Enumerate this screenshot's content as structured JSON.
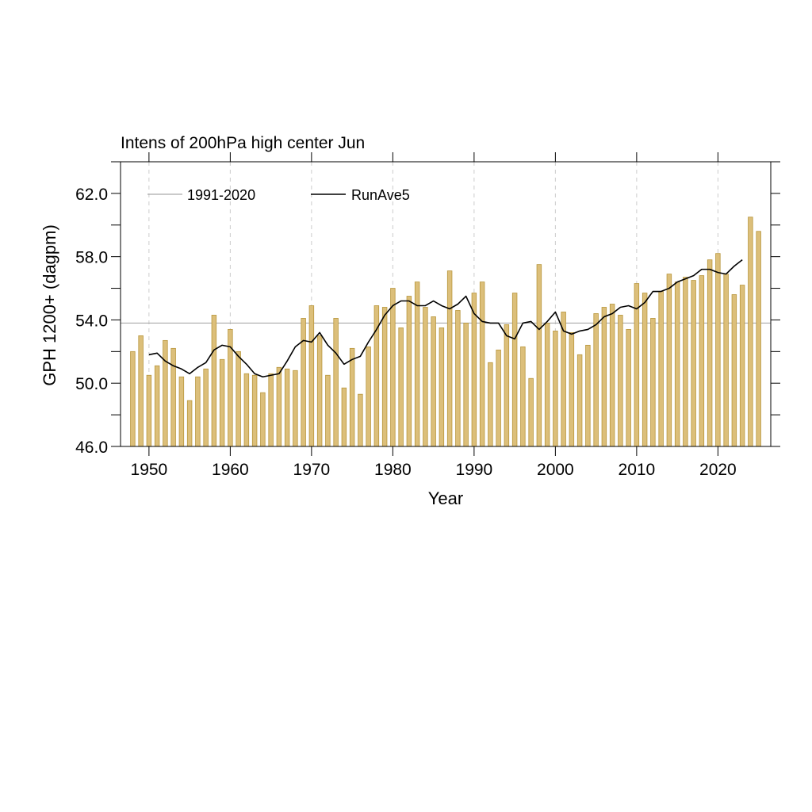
{
  "chart_data": {
    "type": "bar",
    "title": "Intens of 200hPa high center Jun",
    "xlabel": "Year",
    "ylabel": "GPH 1200+ (dagpm)",
    "xlim": [
      1946.5,
      2026.5
    ],
    "ylim": [
      46.0,
      64.0
    ],
    "x_ticks": [
      1950,
      1960,
      1970,
      1980,
      1990,
      2000,
      2010,
      2020
    ],
    "x_tick_labels": [
      "1950",
      "1960",
      "1970",
      "1980",
      "1990",
      "2000",
      "2010",
      "2020"
    ],
    "y_ticks": [
      46.0,
      50.0,
      54.0,
      58.0,
      62.0
    ],
    "y_tick_labels": [
      "46.0",
      "50.0",
      "54.0",
      "58.0",
      "62.0"
    ],
    "grid": "vertical dashed at major x ticks",
    "legend_position": "top-left",
    "bar_color": "#dcbf7a",
    "bar_edge_color": "#b8963c",
    "reference_line": {
      "name": "1991-2020",
      "value": 53.8,
      "color": "#aaaaaa"
    },
    "years": [
      1948,
      1949,
      1950,
      1951,
      1952,
      1953,
      1954,
      1955,
      1956,
      1957,
      1958,
      1959,
      1960,
      1961,
      1962,
      1963,
      1964,
      1965,
      1966,
      1967,
      1968,
      1969,
      1970,
      1971,
      1972,
      1973,
      1974,
      1975,
      1976,
      1977,
      1978,
      1979,
      1980,
      1981,
      1982,
      1983,
      1984,
      1985,
      1986,
      1987,
      1988,
      1989,
      1990,
      1991,
      1992,
      1993,
      1994,
      1995,
      1996,
      1997,
      1998,
      1999,
      2000,
      2001,
      2002,
      2003,
      2004,
      2005,
      2006,
      2007,
      2008,
      2009,
      2010,
      2011,
      2012,
      2013,
      2014,
      2015,
      2016,
      2017,
      2018,
      2019,
      2020,
      2021,
      2022,
      2023,
      2024,
      2025
    ],
    "values": [
      52.0,
      53.0,
      50.5,
      51.1,
      52.7,
      52.2,
      50.4,
      48.9,
      50.4,
      50.9,
      54.3,
      51.5,
      53.4,
      52.0,
      50.6,
      50.5,
      49.4,
      50.6,
      51.0,
      50.9,
      50.8,
      54.1,
      54.9,
      53.0,
      50.5,
      54.1,
      49.7,
      52.2,
      49.3,
      52.3,
      54.9,
      54.8,
      56.0,
      53.5,
      55.5,
      56.4,
      54.8,
      54.2,
      53.5,
      57.1,
      54.6,
      53.8,
      55.7,
      56.4,
      51.3,
      52.1,
      53.7,
      55.7,
      52.3,
      50.3,
      57.5,
      53.8,
      53.3,
      54.5,
      53.2,
      51.8,
      52.4,
      54.4,
      54.8,
      55.0,
      54.3,
      53.4,
      56.3,
      55.7,
      54.1,
      55.8,
      56.9,
      56.4,
      56.7,
      56.5,
      56.8,
      57.8,
      58.2,
      56.9,
      55.6,
      56.2,
      60.5,
      59.6
    ],
    "series": [
      {
        "name": "RunAve5",
        "type": "line",
        "color": "#000000",
        "x": [
          1950,
          1951,
          1952,
          1953,
          1954,
          1955,
          1956,
          1957,
          1958,
          1959,
          1960,
          1961,
          1962,
          1963,
          1964,
          1965,
          1966,
          1967,
          1968,
          1969,
          1970,
          1971,
          1972,
          1973,
          1974,
          1975,
          1976,
          1977,
          1978,
          1979,
          1980,
          1981,
          1982,
          1983,
          1984,
          1985,
          1986,
          1987,
          1988,
          1989,
          1990,
          1991,
          1992,
          1993,
          1994,
          1995,
          1996,
          1997,
          1998,
          1999,
          2000,
          2001,
          2002,
          2003,
          2004,
          2005,
          2006,
          2007,
          2008,
          2009,
          2010,
          2011,
          2012,
          2013,
          2014,
          2015,
          2016,
          2017,
          2018,
          2019,
          2020,
          2021,
          2022,
          2023
        ],
        "values": [
          51.8,
          51.9,
          51.4,
          51.1,
          50.9,
          50.6,
          51.0,
          51.3,
          52.1,
          52.4,
          52.3,
          51.7,
          51.2,
          50.6,
          50.4,
          50.5,
          50.6,
          51.4,
          52.3,
          52.7,
          52.6,
          53.2,
          52.4,
          51.9,
          51.2,
          51.5,
          51.7,
          52.6,
          53.4,
          54.3,
          54.9,
          55.2,
          55.2,
          54.9,
          54.9,
          55.2,
          54.9,
          54.7,
          55.0,
          55.5,
          54.4,
          53.9,
          53.8,
          53.8,
          53.0,
          52.8,
          53.8,
          53.9,
          53.4,
          53.9,
          54.5,
          53.3,
          53.1,
          53.3,
          53.4,
          53.7,
          54.2,
          54.4,
          54.8,
          54.9,
          54.7,
          55.1,
          55.8,
          55.8,
          56.0,
          56.4,
          56.6,
          56.8,
          57.2,
          57.2,
          57.0,
          56.9,
          57.4,
          57.8
        ]
      }
    ]
  }
}
